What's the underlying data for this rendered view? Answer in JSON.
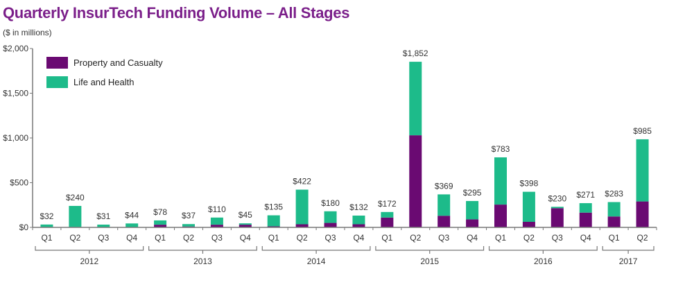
{
  "chart_data": {
    "type": "bar",
    "stacked": true,
    "title": "Quarterly InsurTech Funding Volume – All Stages",
    "subtitle": "($ in millions)",
    "xlabel": "",
    "ylabel": "",
    "ylim": [
      0,
      2000
    ],
    "yticks": [
      {
        "value": 0,
        "label": "$0"
      },
      {
        "value": 500,
        "label": "$500"
      },
      {
        "value": 1000,
        "label": "$1,000"
      },
      {
        "value": 1500,
        "label": "$1,500"
      },
      {
        "value": 2000,
        "label": "$2,000"
      }
    ],
    "categories": [
      "Q1",
      "Q2",
      "Q3",
      "Q4",
      "Q1",
      "Q2",
      "Q3",
      "Q4",
      "Q1",
      "Q2",
      "Q3",
      "Q4",
      "Q1",
      "Q2",
      "Q3",
      "Q4",
      "Q1",
      "Q2",
      "Q3",
      "Q4",
      "Q1",
      "Q2"
    ],
    "groups": [
      {
        "label": "2012",
        "count": 4
      },
      {
        "label": "2013",
        "count": 4
      },
      {
        "label": "2014",
        "count": 4
      },
      {
        "label": "2015",
        "count": 4
      },
      {
        "label": "2016",
        "count": 4
      },
      {
        "label": "2017",
        "count": 2
      }
    ],
    "series": [
      {
        "name": "Property and Casualty",
        "color": "#6a0a72",
        "values": [
          1,
          5,
          1,
          3,
          30,
          10,
          30,
          30,
          12,
          35,
          50,
          35,
          110,
          1030,
          130,
          90,
          255,
          62,
          215,
          165,
          122,
          290
        ]
      },
      {
        "name": "Life and Health",
        "color": "#1dbb8a",
        "values": [
          31,
          235,
          30,
          41,
          48,
          27,
          80,
          15,
          123,
          387,
          130,
          97,
          62,
          822,
          239,
          205,
          528,
          336,
          15,
          106,
          161,
          695
        ]
      }
    ],
    "totals": [
      32,
      240,
      31,
      44,
      78,
      37,
      110,
      45,
      135,
      422,
      180,
      132,
      172,
      1852,
      369,
      295,
      783,
      398,
      230,
      271,
      283,
      985
    ],
    "total_labels": [
      "$32",
      "$240",
      "$31",
      "$44",
      "$78",
      "$37",
      "$110",
      "$45",
      "$135",
      "$422",
      "$180",
      "$132",
      "$172",
      "$1,852",
      "$369",
      "$295",
      "$783",
      "$398",
      "$230",
      "$271",
      "$283",
      "$985"
    ],
    "legend": {
      "placement": "top-left"
    },
    "grid": false
  }
}
